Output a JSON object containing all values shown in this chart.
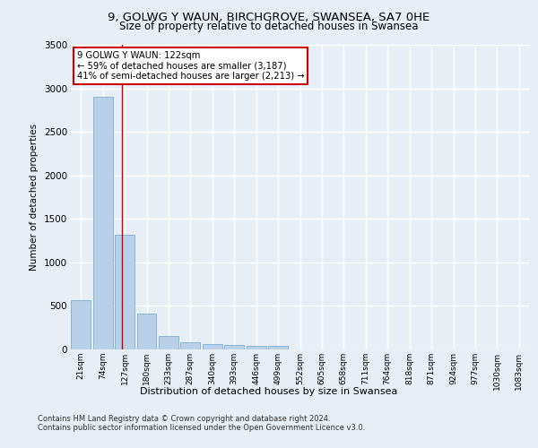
{
  "title1": "9, GOLWG Y WAUN, BIRCHGROVE, SWANSEA, SA7 0HE",
  "title2": "Size of property relative to detached houses in Swansea",
  "xlabel": "Distribution of detached houses by size in Swansea",
  "ylabel": "Number of detached properties",
  "categories": [
    "21sqm",
    "74sqm",
    "127sqm",
    "180sqm",
    "233sqm",
    "287sqm",
    "340sqm",
    "393sqm",
    "446sqm",
    "499sqm",
    "552sqm",
    "605sqm",
    "658sqm",
    "711sqm",
    "764sqm",
    "818sqm",
    "871sqm",
    "924sqm",
    "977sqm",
    "1030sqm",
    "1083sqm"
  ],
  "values": [
    570,
    2900,
    1320,
    410,
    150,
    85,
    65,
    55,
    45,
    40,
    0,
    0,
    0,
    0,
    0,
    0,
    0,
    0,
    0,
    0,
    0
  ],
  "bar_color": "#b8d0e8",
  "bar_edge_color": "#7aafd4",
  "property_line_x": 1.87,
  "annotation_line1": "9 GOLWG Y WAUN: 122sqm",
  "annotation_line2": "← 59% of detached houses are smaller (3,187)",
  "annotation_line3": "41% of semi-detached houses are larger (2,213) →",
  "annotation_box_color": "#ffffff",
  "annotation_box_edge_color": "#cc0000",
  "line_color": "#cc0000",
  "footer1": "Contains HM Land Registry data © Crown copyright and database right 2024.",
  "footer2": "Contains public sector information licensed under the Open Government Licence v3.0.",
  "bg_color": "#e8eef5",
  "plot_bg_color": "#e8eef5",
  "grid_color": "#ffffff",
  "ylim": [
    0,
    3500
  ],
  "yticks": [
    0,
    500,
    1000,
    1500,
    2000,
    2500,
    3000,
    3500
  ]
}
